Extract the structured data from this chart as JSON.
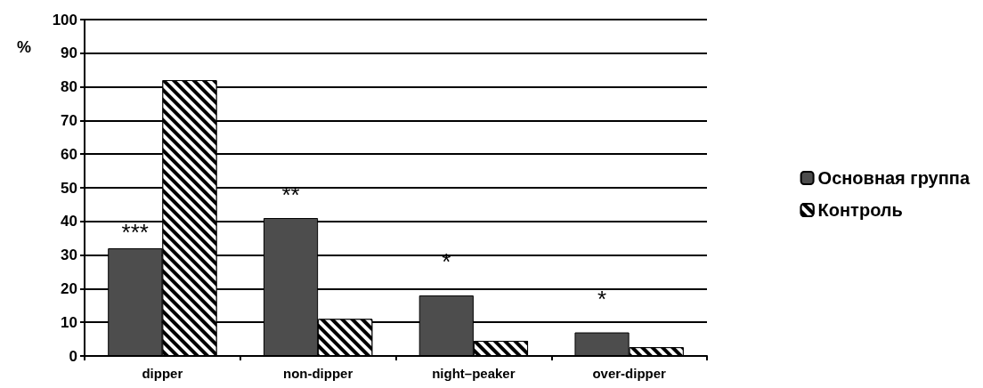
{
  "chart_data": {
    "type": "bar",
    "ylabel": "%",
    "categories": [
      "dipper",
      "non-dipper",
      "night–peaker",
      "over-dipper"
    ],
    "series": [
      {
        "name": "Основная группа",
        "color": "#4d4d4d",
        "values": [
          32,
          41,
          18,
          7
        ]
      },
      {
        "name": "Контроль",
        "color": "#000000",
        "values": [
          82,
          11,
          4.5,
          2.6
        ]
      }
    ],
    "ylim": [
      0,
      100
    ],
    "yticks": [
      0,
      10,
      20,
      30,
      40,
      50,
      60,
      70,
      80,
      90,
      100
    ],
    "grid": "y",
    "legend": "right",
    "annotations": [
      "***",
      "**",
      "*",
      "*"
    ]
  }
}
